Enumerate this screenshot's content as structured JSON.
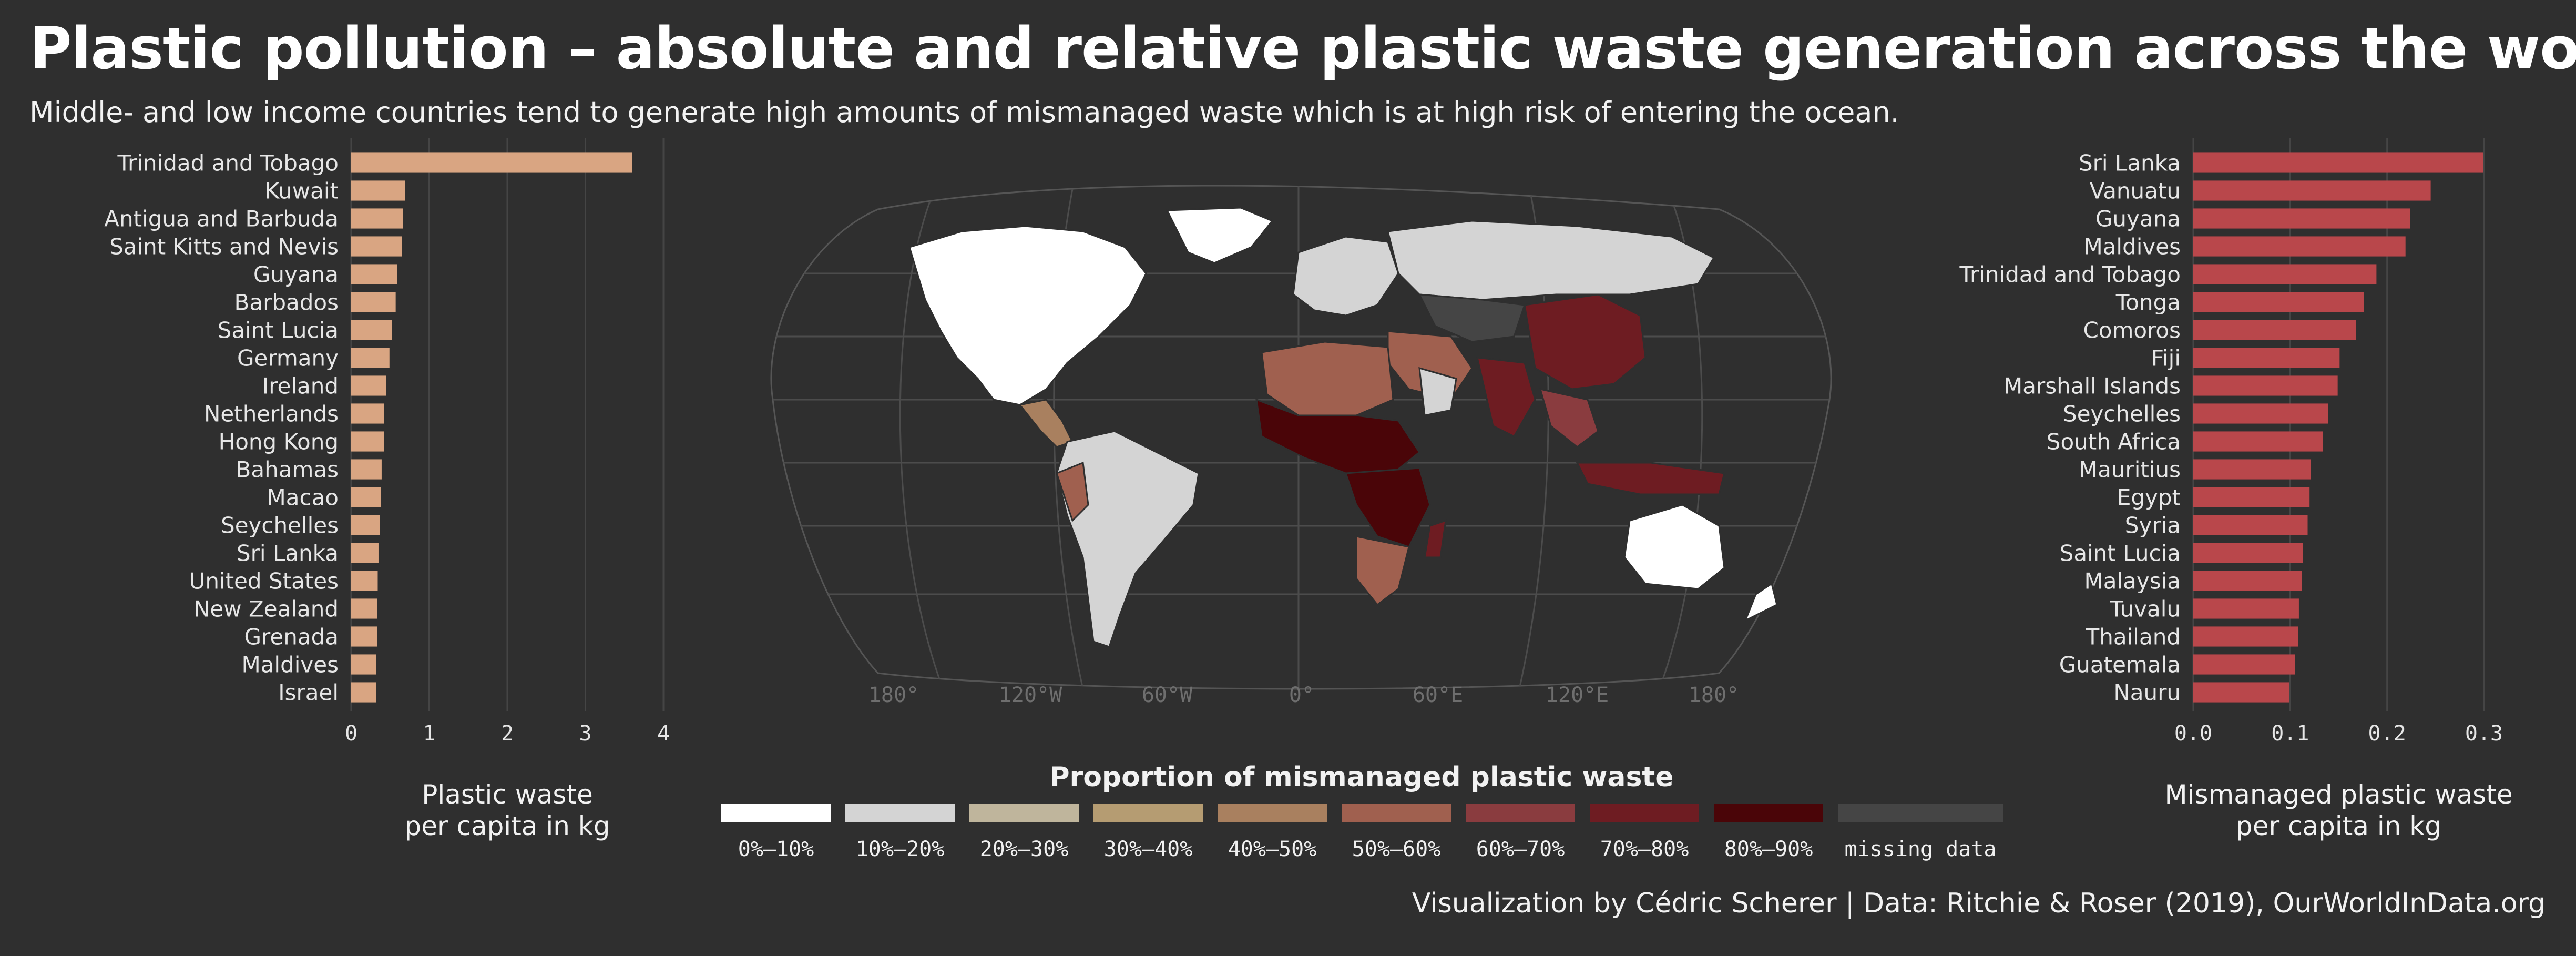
{
  "title": "Plastic pollution – absolute and relative plastic waste generation across the world",
  "subtitle": "Middle- and low income countries tend to generate high amounts of mismanaged waste which is at high risk of entering the ocean.",
  "caption": "Visualization by Cédric Scherer  |  Data: Ritchie & Roser (2019), OurWorldInData.org",
  "colors": {
    "left_bar": "#d9a582",
    "right_bar": "#b9474b",
    "grid": "#454545",
    "background": "#2f2f2f"
  },
  "chart_data": [
    {
      "type": "bar",
      "orientation": "horizontal",
      "xlabel": "Plastic waste\nper capita in kg",
      "xlim": [
        0,
        4
      ],
      "x_ticks": [
        "0",
        "1",
        "2",
        "3",
        "4"
      ],
      "categories": [
        "Trinidad and Tobago",
        "Kuwait",
        "Antigua and Barbuda",
        "Saint Kitts and Nevis",
        "Guyana",
        "Barbados",
        "Saint Lucia",
        "Germany",
        "Ireland",
        "Netherlands",
        "Hong Kong",
        "Bahamas",
        "Macao",
        "Seychelles",
        "Sri Lanka",
        "United States",
        "New Zealand",
        "Grenada",
        "Maldives",
        "Israel"
      ],
      "values": [
        3.6,
        0.69,
        0.66,
        0.65,
        0.59,
        0.57,
        0.52,
        0.49,
        0.45,
        0.42,
        0.42,
        0.39,
        0.38,
        0.37,
        0.35,
        0.34,
        0.33,
        0.33,
        0.32,
        0.32
      ]
    },
    {
      "type": "bar",
      "orientation": "horizontal",
      "xlabel": "Mismanaged plastic waste\nper capita in kg",
      "xlim": [
        0,
        0.3
      ],
      "x_ticks": [
        "0.0",
        "0.1",
        "0.2",
        "0.3"
      ],
      "categories": [
        "Sri Lanka",
        "Vanuatu",
        "Guyana",
        "Maldives",
        "Trinidad and Tobago",
        "Tonga",
        "Comoros",
        "Fiji",
        "Marshall Islands",
        "Seychelles",
        "South Africa",
        "Mauritius",
        "Egypt",
        "Syria",
        "Saint Lucia",
        "Malaysia",
        "Tuvalu",
        "Thailand",
        "Guatemala",
        "Nauru"
      ],
      "values": [
        0.299,
        0.245,
        0.224,
        0.219,
        0.189,
        0.176,
        0.168,
        0.151,
        0.149,
        0.139,
        0.134,
        0.121,
        0.12,
        0.118,
        0.113,
        0.112,
        0.109,
        0.108,
        0.105,
        0.099
      ]
    }
  ],
  "map": {
    "longitude_labels": [
      "180°",
      "120°W",
      "60°W",
      "0°",
      "60°E",
      "120°E",
      "180°"
    ],
    "legend_title": "Proportion of mismanaged plastic waste",
    "legend": [
      {
        "label": "0%–10%",
        "color": "#ffffff"
      },
      {
        "label": "10%–20%",
        "color": "#d4d4d4"
      },
      {
        "label": "20%–30%",
        "color": "#bfb59c"
      },
      {
        "label": "30%–40%",
        "color": "#b59c72"
      },
      {
        "label": "40%–50%",
        "color": "#a9805f"
      },
      {
        "label": "50%–60%",
        "color": "#a0604f"
      },
      {
        "label": "60%–70%",
        "color": "#8a3c3f"
      },
      {
        "label": "70%–80%",
        "color": "#6e1c22"
      },
      {
        "label": "80%–90%",
        "color": "#4a0508"
      },
      {
        "label": "missing data",
        "color": "#454545"
      }
    ]
  }
}
